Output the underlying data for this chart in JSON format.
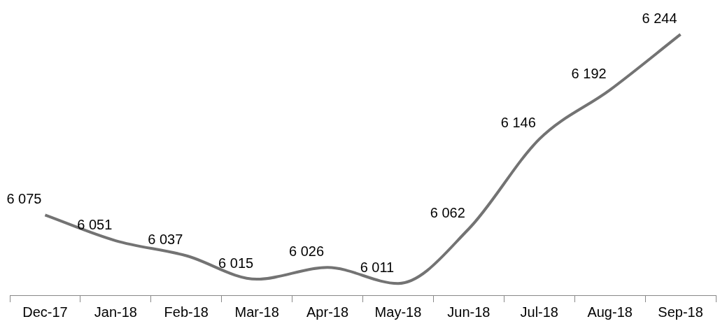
{
  "chart_data": {
    "type": "line",
    "categories": [
      "Dec-17",
      "Jan-18",
      "Feb-18",
      "Mar-18",
      "Apr-18",
      "May-18",
      "Jun-18",
      "Jul-18",
      "Aug-18",
      "Sep-18"
    ],
    "series": [
      {
        "color": "#737373",
        "values": [
          6075,
          6051,
          6037,
          6015,
          6026,
          6011,
          6062,
          6146,
          6192,
          6244
        ],
        "value_labels": [
          "6 075",
          "6 051",
          "6 037",
          "6 015",
          "6 026",
          "6 011",
          "6 062",
          "6 146",
          "6 192",
          "6 244"
        ]
      }
    ],
    "grid": false,
    "legend": false,
    "marker": "none",
    "line_style": "solid"
  }
}
